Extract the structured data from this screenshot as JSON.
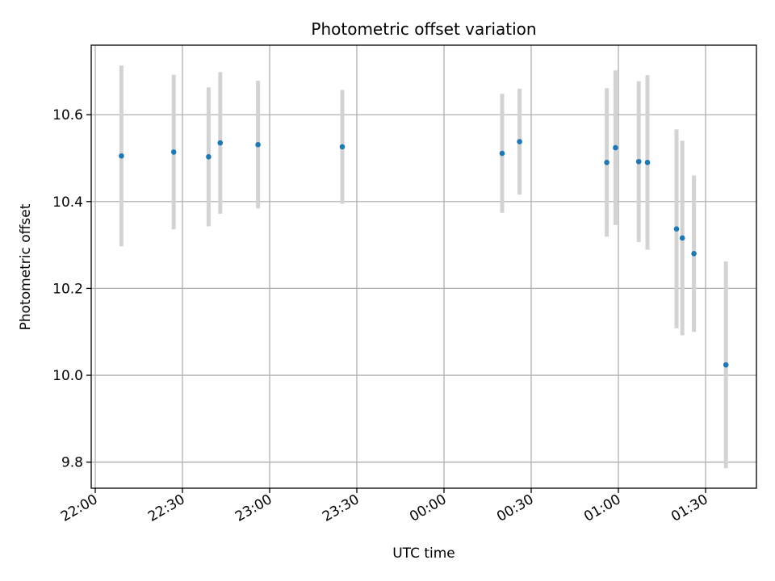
{
  "chart_data": {
    "type": "scatter",
    "title": "Photometric offset variation",
    "xlabel": "UTC time",
    "ylabel": "Photometric offset",
    "x_ticks": [
      "22:00",
      "22:30",
      "23:00",
      "23:30",
      "00:00",
      "00:30",
      "01:00",
      "01:30"
    ],
    "x_tick_minutes": [
      0,
      30,
      60,
      90,
      120,
      150,
      180,
      210
    ],
    "y_ticks": [
      "9.8",
      "10.0",
      "10.2",
      "10.4",
      "10.6"
    ],
    "y_tick_values": [
      9.8,
      10.0,
      10.2,
      10.4,
      10.6
    ],
    "xlim": [
      "21:59",
      "01:50"
    ],
    "ylim": [
      9.74,
      10.76
    ],
    "grid": true,
    "marker_color": "#1f77b4",
    "errorbar_color": "#d3d3d3",
    "points": [
      {
        "x": "22:09",
        "y": 10.505,
        "err": 0.208
      },
      {
        "x": "22:27",
        "y": 10.514,
        "err": 0.178
      },
      {
        "x": "22:39",
        "y": 10.503,
        "err": 0.16
      },
      {
        "x": "22:43",
        "y": 10.535,
        "err": 0.163
      },
      {
        "x": "22:56",
        "y": 10.531,
        "err": 0.147
      },
      {
        "x": "23:25",
        "y": 10.526,
        "err": 0.131
      },
      {
        "x": "00:20",
        "y": 10.511,
        "err": 0.137
      },
      {
        "x": "00:26",
        "y": 10.538,
        "err": 0.122
      },
      {
        "x": "00:56",
        "y": 10.49,
        "err": 0.171
      },
      {
        "x": "00:59",
        "y": 10.524,
        "err": 0.178
      },
      {
        "x": "01:07",
        "y": 10.492,
        "err": 0.185
      },
      {
        "x": "01:10",
        "y": 10.49,
        "err": 0.201
      },
      {
        "x": "01:20",
        "y": 10.337,
        "err": 0.229
      },
      {
        "x": "01:22",
        "y": 10.316,
        "err": 0.224
      },
      {
        "x": "01:26",
        "y": 10.28,
        "err": 0.18
      },
      {
        "x": "01:37",
        "y": 10.024,
        "err": 0.238
      }
    ]
  }
}
